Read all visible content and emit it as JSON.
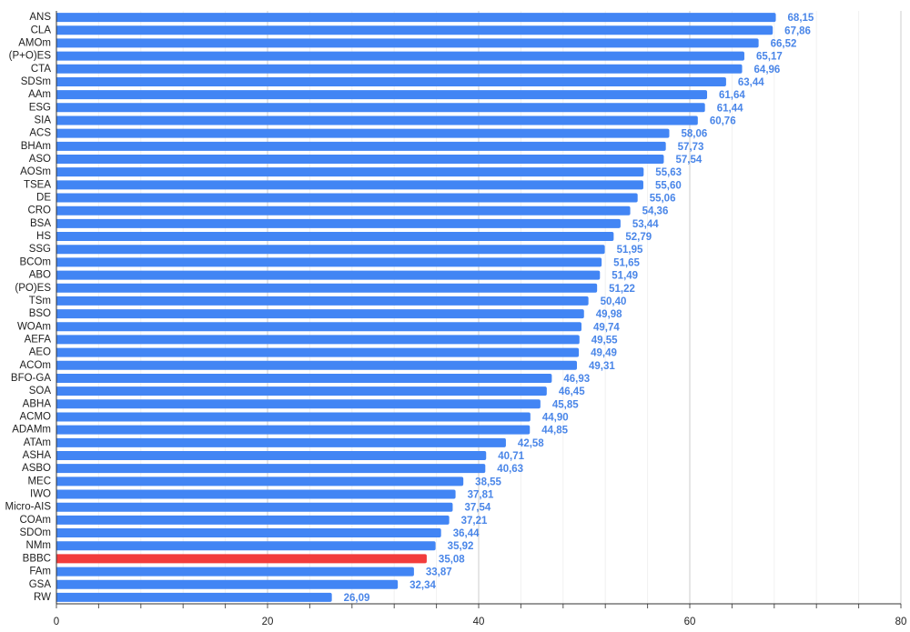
{
  "chart_data": {
    "type": "hbar",
    "categories": [
      "ANS",
      "CLA",
      "AMOm",
      "(P+O)ES",
      "CTA",
      "SDSm",
      "AAm",
      "ESG",
      "SIA",
      "ACS",
      "BHAm",
      "ASO",
      "AOSm",
      "TSEA",
      "DE",
      "CRO",
      "BSA",
      "HS",
      "SSG",
      "BCOm",
      "ABO",
      "(PO)ES",
      "TSm",
      "BSO",
      "WOAm",
      "AEFA",
      "AEO",
      "ACOm",
      "BFO-GA",
      "SOA",
      "ABHA",
      "ACMO",
      "ADAMm",
      "ATAm",
      "ASHA",
      "ASBO",
      "MEC",
      "IWO",
      "Micro-AIS",
      "COAm",
      "SDOm",
      "NMm",
      "BBBC",
      "FAm",
      "GSA",
      "RW"
    ],
    "values": [
      68.15,
      67.86,
      66.52,
      65.17,
      64.96,
      63.44,
      61.64,
      61.44,
      60.76,
      58.06,
      57.73,
      57.54,
      55.63,
      55.6,
      55.06,
      54.36,
      53.44,
      52.79,
      51.95,
      51.65,
      51.49,
      51.22,
      50.4,
      49.98,
      49.74,
      49.55,
      49.49,
      49.31,
      46.93,
      46.45,
      45.85,
      44.9,
      44.85,
      42.58,
      40.71,
      40.63,
      38.55,
      37.81,
      37.54,
      37.21,
      36.44,
      35.92,
      35.08,
      33.87,
      32.34,
      26.09
    ],
    "value_labels": [
      "68,15",
      "67,86",
      "66,52",
      "65,17",
      "64,96",
      "63,44",
      "61,64",
      "61,44",
      "60,76",
      "58,06",
      "57,73",
      "57,54",
      "55,63",
      "55,60",
      "55,06",
      "54,36",
      "53,44",
      "52,79",
      "51,95",
      "51,65",
      "51,49",
      "51,22",
      "50,40",
      "49,98",
      "49,74",
      "49,55",
      "49,49",
      "49,31",
      "46,93",
      "46,45",
      "45,85",
      "44,90",
      "44,85",
      "42,58",
      "40,71",
      "40,63",
      "38,55",
      "37,81",
      "37,54",
      "37,21",
      "36,44",
      "35,92",
      "35,08",
      "33,87",
      "32,34",
      "26,09"
    ],
    "colors": [
      "#4285f4",
      "#4285f4",
      "#4285f4",
      "#4285f4",
      "#4285f4",
      "#4285f4",
      "#4285f4",
      "#4285f4",
      "#4285f4",
      "#4285f4",
      "#4285f4",
      "#4285f4",
      "#4285f4",
      "#4285f4",
      "#4285f4",
      "#4285f4",
      "#4285f4",
      "#4285f4",
      "#4285f4",
      "#4285f4",
      "#4285f4",
      "#4285f4",
      "#4285f4",
      "#4285f4",
      "#4285f4",
      "#4285f4",
      "#4285f4",
      "#4285f4",
      "#4285f4",
      "#4285f4",
      "#4285f4",
      "#4285f4",
      "#4285f4",
      "#4285f4",
      "#4285f4",
      "#4285f4",
      "#4285f4",
      "#4285f4",
      "#4285f4",
      "#4285f4",
      "#4285f4",
      "#4285f4",
      "#f23c3c",
      "#4285f4",
      "#4285f4",
      "#4285f4"
    ],
    "xlim": [
      0,
      80
    ],
    "xticks": [
      0,
      20,
      40,
      60,
      80
    ],
    "xminorticks": [
      4,
      8,
      12,
      16,
      24,
      28,
      32,
      36,
      44,
      48,
      52,
      56,
      64,
      68,
      72,
      76
    ],
    "grid": true
  }
}
